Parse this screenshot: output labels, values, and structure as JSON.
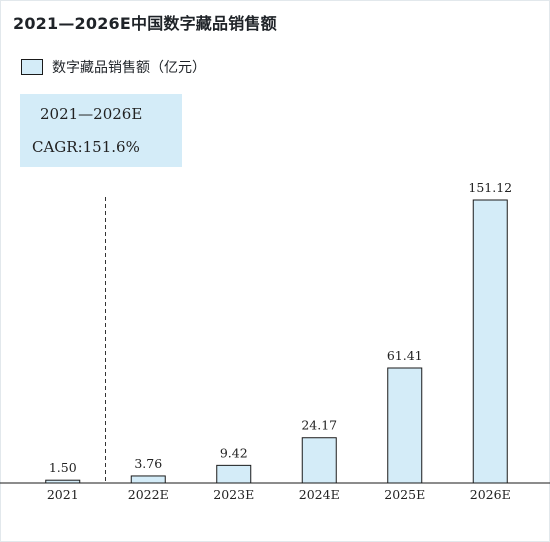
{
  "chart_data": {
    "type": "bar",
    "title": "2021—2026E中国数字藏品销售额",
    "legend": "数字藏品销售额（亿元）",
    "categories": [
      "2021",
      "2022E",
      "2023E",
      "2024E",
      "2025E",
      "2026E"
    ],
    "values": [
      1.5,
      3.76,
      9.42,
      24.17,
      61.41,
      151.12
    ],
    "value_labels": [
      "1.50",
      "3.76",
      "9.42",
      "24.17",
      "61.41",
      "151.12"
    ],
    "annotation": {
      "period": "2021—2026E",
      "cagr": "CAGR:151.6%"
    },
    "separator_after_category": "2021",
    "bar_color": "#d4ecf8",
    "bar_stroke": "#1a1a1a",
    "grid": false,
    "legend_position": "top-left"
  }
}
